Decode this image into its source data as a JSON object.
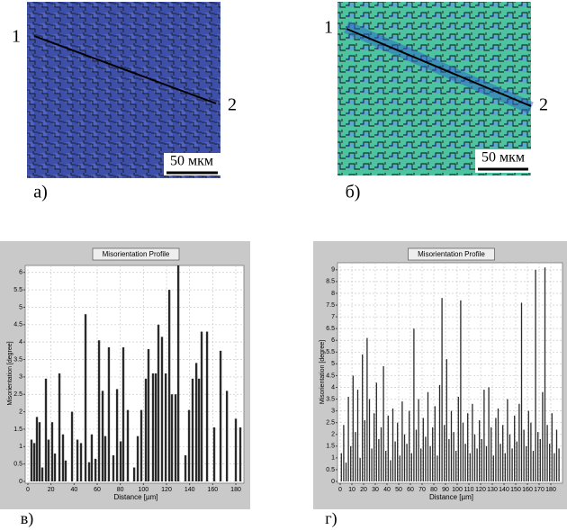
{
  "maps": [
    {
      "label": "а)",
      "start": "1",
      "end": "2",
      "scale": "50 мкм"
    },
    {
      "label": "б)",
      "start": "1",
      "end": "2",
      "scale": "50 мкм"
    }
  ],
  "chart_data": [
    {
      "type": "bar",
      "label": "в)",
      "title": "Misorientation Profile",
      "x_label": "Distance [µm]",
      "y_label": "Misorientation [degree]",
      "x": [
        3.1,
        5.5,
        7.8,
        10.1,
        12.5,
        15.6,
        17.9,
        21,
        23.4,
        27.3,
        30.4,
        32.7,
        38.2,
        42.9,
        46,
        49.9,
        53,
        55.3,
        58.5,
        61.6,
        64.7,
        67,
        70.1,
        74,
        77.2,
        80.3,
        82.6,
        86.5,
        92,
        95.1,
        98.2,
        102.1,
        104.4,
        108.3,
        110.7,
        113,
        116.1,
        119.3,
        122.4,
        124.7,
        127.8,
        130.2,
        136.4,
        139.5,
        142.6,
        145.8,
        148.1,
        150.4,
        155.1,
        161.3,
        166.8,
        172.3,
        180,
        183.9
      ],
      "values": [
        1.2,
        1.1,
        1.85,
        1.7,
        0.4,
        2.95,
        1.2,
        1.7,
        0.8,
        3.1,
        1.35,
        0.6,
        2.0,
        1.2,
        1.1,
        4.8,
        0.55,
        1.35,
        0.65,
        4.05,
        2.6,
        1.3,
        3.85,
        0.75,
        2.65,
        1.15,
        3.85,
        2.05,
        0.4,
        1.3,
        2.05,
        2.95,
        3.8,
        3.1,
        3.1,
        4.5,
        4.15,
        3.1,
        5.5,
        2.5,
        2.5,
        6.2,
        0.75,
        2.05,
        2.95,
        3.4,
        2.95,
        4.3,
        4.3,
        1.55,
        3.75,
        2.6,
        1.8,
        1.55
      ],
      "color": "#2a2a2a",
      "xlim": [
        0,
        187
      ],
      "ylim": [
        0,
        6.2
      ],
      "xticks": [
        0,
        20,
        40,
        60,
        80,
        100,
        120,
        140,
        160,
        180
      ],
      "yticks": [
        0,
        0.5,
        1,
        1.5,
        2,
        2.5,
        3,
        3.5,
        4,
        4.5,
        5,
        5.5,
        6
      ],
      "grid": true
    },
    {
      "type": "bar",
      "label": "г)",
      "title": "Misorientation Profile",
      "x_label": "Distance [µm]",
      "y_label": "Misorientation [degree]",
      "x": [
        1,
        3,
        5,
        7,
        9,
        11,
        13,
        15,
        17,
        19,
        21,
        23,
        25,
        27,
        29,
        31,
        33,
        35,
        37,
        39,
        41,
        43,
        45,
        47,
        49,
        51,
        53,
        55,
        57,
        59,
        61,
        63,
        65,
        67,
        69,
        71,
        73,
        75,
        77,
        79,
        81,
        83,
        85,
        87,
        89,
        91,
        93,
        95,
        97,
        99,
        101,
        103,
        105,
        107,
        109,
        111,
        113,
        115,
        117,
        119,
        121,
        123,
        125,
        127,
        129,
        131,
        133,
        135,
        137,
        139,
        141,
        143,
        145,
        147,
        149,
        151,
        153,
        155,
        157,
        159,
        161,
        163,
        165,
        167,
        169,
        171,
        173,
        175,
        177,
        179,
        181,
        183,
        185,
        187
      ],
      "values": [
        1.2,
        2.4,
        0.8,
        3.6,
        1.5,
        4.5,
        2.1,
        3.9,
        1.0,
        5.4,
        2.6,
        6.1,
        3.5,
        1.4,
        2.9,
        4.2,
        1.8,
        2.3,
        4.9,
        1.3,
        2.8,
        0.9,
        3.1,
        1.7,
        2.5,
        1.1,
        3.4,
        2.0,
        1.6,
        3.0,
        1.2,
        6.5,
        2.2,
        3.5,
        1.4,
        2.7,
        1.9,
        3.8,
        1.5,
        2.3,
        3.2,
        1.1,
        4.1,
        7.8,
        2.4,
        5.2,
        1.8,
        3.0,
        2.1,
        1.3,
        3.6,
        7.7,
        2.5,
        1.6,
        2.9,
        1.2,
        3.3,
        2.0,
        1.4,
        2.6,
        1.8,
        3.9,
        1.5,
        4.0,
        2.3,
        1.1,
        2.7,
        3.1,
        1.6,
        2.4,
        1.2,
        3.5,
        2.0,
        1.4,
        2.8,
        1.7,
        3.3,
        7.6,
        2.2,
        1.5,
        3.0,
        2.5,
        1.3,
        9.0,
        2.1,
        1.8,
        3.8,
        9.1,
        2.4,
        1.6,
        2.9,
        1.2,
        2.2,
        1.4
      ],
      "color": "#2a2a2a",
      "xlim": [
        0,
        190
      ],
      "ylim": [
        0,
        9.3
      ],
      "xticks": [
        0,
        10,
        20,
        30,
        40,
        50,
        60,
        70,
        80,
        90,
        100,
        110,
        120,
        130,
        140,
        150,
        160,
        170,
        180
      ],
      "yticks": [
        0,
        0.5,
        1,
        1.5,
        2,
        2.5,
        3,
        3.5,
        4,
        4.5,
        5,
        5.5,
        6,
        6.5,
        7,
        7.5,
        8,
        8.5,
        9
      ],
      "grid": true
    }
  ]
}
